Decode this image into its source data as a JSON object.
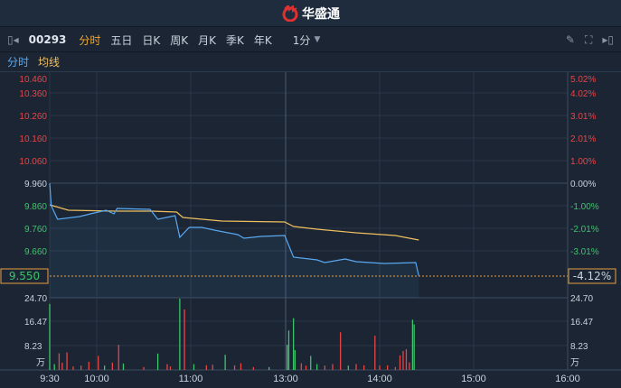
{
  "header": {
    "brand": "华盛通",
    "brand_icon": "huashengtong-logo"
  },
  "toolbar": {
    "symbol": "00293",
    "periods": [
      "分时",
      "五日",
      "日K",
      "周K",
      "月K",
      "季K",
      "年K"
    ],
    "active_period": "分时",
    "interval": "1分",
    "icons": [
      "collapse-left-icon",
      "pencil-icon",
      "fullscreen-icon",
      "collapse-right-icon"
    ]
  },
  "tabs": {
    "intraday": "分时",
    "avg": "均线"
  },
  "colors": {
    "price": "#5aa8f0",
    "avg": "#f0c060",
    "up": "#e84545",
    "down": "#3ec46a",
    "accent": "#e8a040"
  },
  "chart_data": {
    "type": "line",
    "prev_close": 9.96,
    "price_ticks": [
      "10.460",
      "10.360",
      "10.260",
      "10.160",
      "10.060",
      "9.960",
      "9.860",
      "9.760",
      "9.660"
    ],
    "pct_ticks": [
      "5.02%",
      "4.02%",
      "3.01%",
      "2.01%",
      "1.00%",
      "0.00%",
      "-1.00%",
      "-2.01%",
      "-3.01%"
    ],
    "current_price": "9.550",
    "current_pct": "-4.12%",
    "volume_ticks": [
      "24.70",
      "16.47",
      "8.23"
    ],
    "volume_unit": "万",
    "time_ticks": [
      "9:30",
      "10:00",
      "11:00",
      "13:00",
      "14:00",
      "15:00",
      "16:00"
    ],
    "series": [
      {
        "key": "price",
        "points": [
          [
            "09:30",
            9.96
          ],
          [
            "09:31",
            9.86
          ],
          [
            "09:35",
            9.8
          ],
          [
            "09:49",
            9.812
          ],
          [
            "09:56",
            9.824
          ],
          [
            "10:06",
            9.84
          ],
          [
            "10:11",
            9.824
          ],
          [
            "10:13",
            9.848
          ],
          [
            "10:34",
            9.844
          ],
          [
            "10:39",
            9.8
          ],
          [
            "10:50",
            9.816
          ],
          [
            "10:53",
            9.72
          ],
          [
            "10:59",
            9.764
          ],
          [
            "11:07",
            9.764
          ],
          [
            "11:15",
            9.752
          ],
          [
            "11:30",
            9.732
          ],
          [
            "11:34",
            9.716
          ],
          [
            "11:45",
            9.724
          ],
          [
            "12:00",
            9.728
          ],
          [
            "13:05",
            9.632
          ],
          [
            "13:20",
            9.62
          ],
          [
            "13:25",
            9.608
          ],
          [
            "13:38",
            9.624
          ],
          [
            "13:45",
            9.612
          ],
          [
            "14:03",
            9.604
          ],
          [
            "14:23",
            9.608
          ],
          [
            "14:25",
            9.55
          ]
        ]
      },
      {
        "key": "avg",
        "points": [
          [
            "09:30",
            9.864
          ],
          [
            "09:42",
            9.84
          ],
          [
            "10:12",
            9.836
          ],
          [
            "10:35",
            9.836
          ],
          [
            "10:51",
            9.832
          ],
          [
            "10:55",
            9.808
          ],
          [
            "11:20",
            9.792
          ],
          [
            "12:00",
            9.788
          ],
          [
            "13:05",
            9.768
          ],
          [
            "13:20",
            9.756
          ],
          [
            "13:45",
            9.74
          ],
          [
            "14:10",
            9.728
          ],
          [
            "14:25",
            9.708
          ]
        ]
      }
    ],
    "volume": [
      [
        "09:30",
        22.6,
        "down"
      ],
      [
        "09:33",
        2.0,
        "down"
      ],
      [
        "09:36",
        5.7,
        "up"
      ],
      [
        "09:38",
        2.5,
        "up"
      ],
      [
        "09:41",
        6.0,
        "up"
      ],
      [
        "09:45",
        1.2,
        "up"
      ],
      [
        "09:50",
        1.5,
        "up"
      ],
      [
        "09:55",
        2.8,
        "up"
      ],
      [
        "10:01",
        4.8,
        "up"
      ],
      [
        "10:05",
        1.5,
        "down"
      ],
      [
        "10:10",
        2.5,
        "up"
      ],
      [
        "10:14",
        8.6,
        "up"
      ],
      [
        "10:17",
        2.2,
        "down"
      ],
      [
        "10:30",
        1.0,
        "up"
      ],
      [
        "10:39",
        5.6,
        "down"
      ],
      [
        "10:45",
        2.0,
        "up"
      ],
      [
        "10:47",
        1.2,
        "up"
      ],
      [
        "10:53",
        24.4,
        "down"
      ],
      [
        "10:56",
        20.7,
        "up"
      ],
      [
        "11:02",
        2.0,
        "down"
      ],
      [
        "11:10",
        1.6,
        "up"
      ],
      [
        "11:14",
        1.8,
        "up"
      ],
      [
        "11:22",
        5.2,
        "down"
      ],
      [
        "11:28",
        1.6,
        "up"
      ],
      [
        "11:32",
        2.3,
        "up"
      ],
      [
        "11:40",
        1.0,
        "up"
      ],
      [
        "11:50",
        1.0,
        "down"
      ],
      [
        "13:01",
        8.6,
        "down"
      ],
      [
        "13:02",
        13.5,
        "down"
      ],
      [
        "13:05",
        17.7,
        "down"
      ],
      [
        "13:06",
        6.8,
        "down"
      ],
      [
        "13:10",
        2.3,
        "up"
      ],
      [
        "13:13",
        1.5,
        "up"
      ],
      [
        "13:16",
        4.8,
        "down"
      ],
      [
        "13:20",
        2.0,
        "down"
      ],
      [
        "13:25",
        1.5,
        "up"
      ],
      [
        "13:30",
        2.0,
        "up"
      ],
      [
        "13:35",
        12.9,
        "up"
      ],
      [
        "13:40",
        1.5,
        "down"
      ],
      [
        "13:45",
        2.0,
        "up"
      ],
      [
        "13:50",
        1.6,
        "up"
      ],
      [
        "13:57",
        11.7,
        "up"
      ],
      [
        "14:00",
        1.5,
        "up"
      ],
      [
        "14:05",
        1.6,
        "up"
      ],
      [
        "14:10",
        1.0,
        "up"
      ],
      [
        "14:13",
        5.0,
        "up"
      ],
      [
        "14:15",
        6.5,
        "up"
      ],
      [
        "14:17",
        7.1,
        "up"
      ],
      [
        "14:19",
        2.6,
        "up"
      ],
      [
        "14:21",
        17.2,
        "down"
      ],
      [
        "14:22",
        15.6,
        "down"
      ]
    ],
    "volume_max": 24.7
  }
}
